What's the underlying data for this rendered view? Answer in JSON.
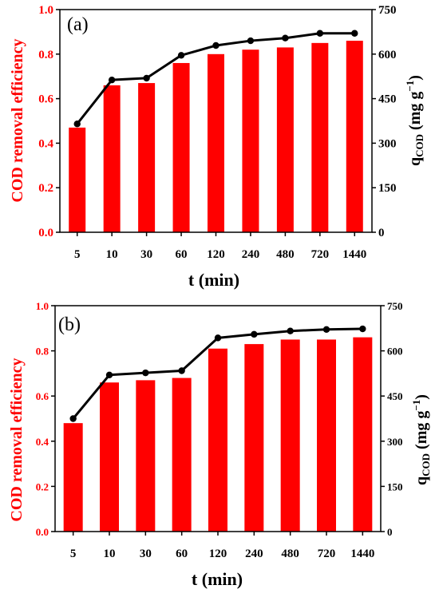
{
  "chart_data": [
    {
      "type": "bar",
      "panel_label": "(a)",
      "categories": [
        "5",
        "10",
        "30",
        "60",
        "120",
        "240",
        "480",
        "720",
        "1440"
      ],
      "series": [
        {
          "axis": "left",
          "kind": "bar",
          "color": "#ff0000",
          "values": [
            0.47,
            0.66,
            0.67,
            0.76,
            0.8,
            0.82,
            0.83,
            0.85,
            0.86
          ]
        },
        {
          "axis": "right",
          "kind": "line",
          "color": "#000000",
          "values": [
            365,
            513,
            519,
            596,
            629,
            645,
            654,
            670,
            670
          ]
        }
      ],
      "xlabel": "t (min)",
      "ylabel_left": "COD removal efficiency",
      "ylabel_right": {
        "base": "q",
        "sub": "COD",
        "unit_open": " (mg g",
        "sup": "−1",
        "unit_close": ")"
      },
      "ylim_left": [
        0.0,
        1.0
      ],
      "yticks_left": [
        "0.0",
        "0.2",
        "0.4",
        "0.6",
        "0.8",
        "1.0"
      ],
      "ylim_right": [
        0,
        750
      ],
      "yticks_right": [
        "0",
        "150",
        "300",
        "450",
        "600",
        "750"
      ],
      "grid": false
    },
    {
      "type": "bar",
      "panel_label": "(b)",
      "categories": [
        "5",
        "10",
        "30",
        "60",
        "120",
        "240",
        "480",
        "720",
        "1440"
      ],
      "series": [
        {
          "axis": "left",
          "kind": "bar",
          "color": "#ff0000",
          "values": [
            0.48,
            0.66,
            0.67,
            0.68,
            0.81,
            0.83,
            0.85,
            0.85,
            0.86
          ]
        },
        {
          "axis": "right",
          "kind": "line",
          "color": "#000000",
          "values": [
            375,
            520,
            527,
            534,
            643,
            655,
            666,
            671,
            673
          ]
        }
      ],
      "xlabel": "t (min)",
      "ylabel_left": "COD removal efficiency",
      "ylabel_right": {
        "base": "q",
        "sub": "COD",
        "unit_open": " (mg g",
        "sup": "−1",
        "unit_close": ")"
      },
      "ylim_left": [
        0.0,
        1.0
      ],
      "yticks_left": [
        "0.0",
        "0.2",
        "0.4",
        "0.6",
        "0.8",
        "1.0"
      ],
      "ylim_right": [
        0,
        750
      ],
      "yticks_right": [
        "0",
        "150",
        "300",
        "450",
        "600",
        "750"
      ],
      "grid": false
    }
  ]
}
